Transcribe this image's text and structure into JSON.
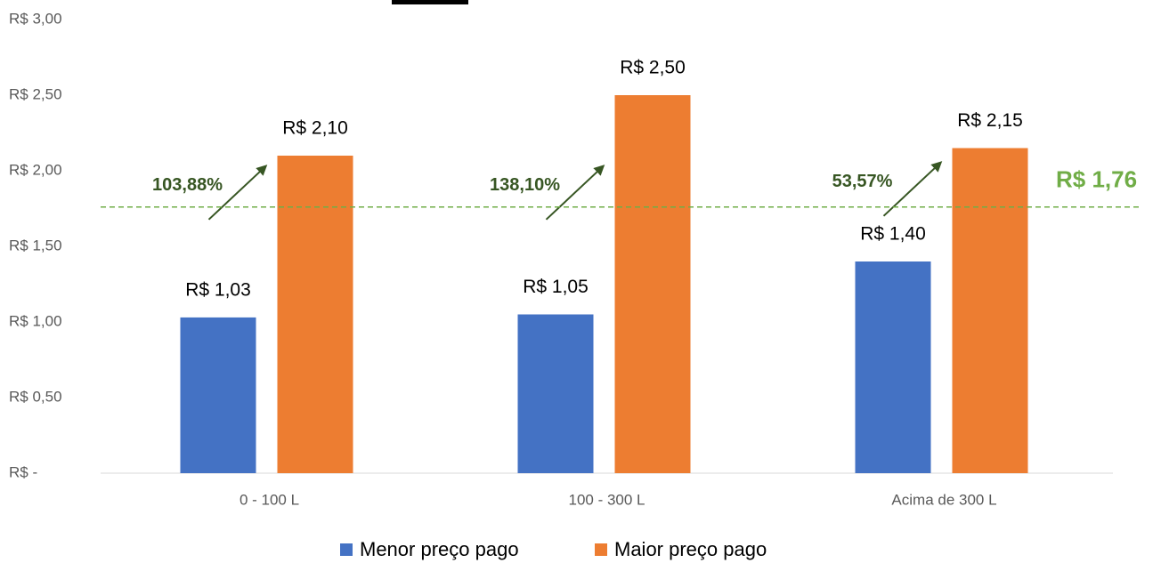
{
  "chart_data": {
    "type": "bar",
    "categories": [
      "0 - 100 L",
      "100 - 300 L",
      "Acima de 300 L"
    ],
    "series": [
      {
        "name": "Menor preço pago",
        "color": "#4472c4",
        "values": [
          1.03,
          1.05,
          1.4
        ],
        "value_labels": [
          "R$ 1,03",
          "R$ 1,05",
          "R$ 1,40"
        ]
      },
      {
        "name": "Maior preço pago",
        "color": "#ed7d31",
        "values": [
          2.1,
          2.5,
          2.15
        ],
        "value_labels": [
          "R$ 2,10",
          "R$ 2,50",
          "R$ 2,15"
        ]
      }
    ],
    "ylim": [
      0,
      3
    ],
    "yticks": [
      {
        "value": 0,
        "label": "R$ -"
      },
      {
        "value": 0.5,
        "label": "R$ 0,50"
      },
      {
        "value": 1,
        "label": "R$ 1,00"
      },
      {
        "value": 1.5,
        "label": "R$ 1,50"
      },
      {
        "value": 2,
        "label": "R$ 2,00"
      },
      {
        "value": 2.5,
        "label": "R$ 2,50"
      },
      {
        "value": 3,
        "label": "R$ 3,00"
      }
    ],
    "reference_line": {
      "value": 1.76,
      "label": "R$ 1,76",
      "color": "#70ad47"
    },
    "annotations": [
      "103,88%",
      "138,10%",
      "53,57%"
    ],
    "legend": "bottom"
  }
}
